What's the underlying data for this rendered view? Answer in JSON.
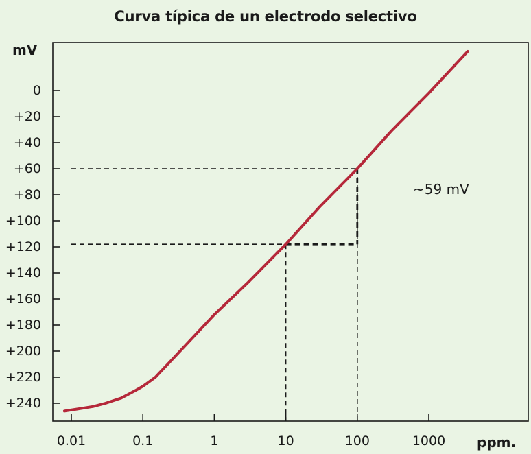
{
  "colors": {
    "background": "#eaf4e4",
    "curve": "#b5283a",
    "axis": "#1a1a1a"
  },
  "chart_data": {
    "type": "line",
    "title": "Curva típica de un electrodo selectivo",
    "ylabel": "mV",
    "xlabel": "ppm.",
    "x_scale": "log",
    "y_inverted": true,
    "grid": false,
    "xlim": [
      0.007,
      6000
    ],
    "ylim": [
      -40,
      260
    ],
    "x_ticks": [
      0.01,
      0.1,
      1,
      10,
      100,
      1000
    ],
    "x_tick_labels": [
      "0.01",
      "0.1",
      "1",
      "10",
      "100",
      "1000"
    ],
    "y_ticks": [
      0,
      20,
      40,
      60,
      80,
      100,
      120,
      140,
      160,
      180,
      200,
      220,
      240
    ],
    "y_tick_labels": [
      "0",
      "+20",
      "+40",
      "+60",
      "+80",
      "+100",
      "+120",
      "+140",
      "+160",
      "+180",
      "+200",
      "+220",
      "+240"
    ],
    "series": [
      {
        "x": [
          0.008,
          0.012,
          0.02,
          0.03,
          0.05,
          0.08,
          0.1,
          0.15,
          0.3,
          1,
          3,
          10,
          30,
          100,
          300,
          1000,
          3500
        ],
        "y": [
          246,
          244.5,
          242.5,
          240,
          236,
          230,
          227,
          220,
          202.5,
          172,
          147,
          118,
          89,
          60,
          31,
          2,
          -30
        ]
      }
    ],
    "reference_lines": [
      {
        "x": 10,
        "y": 118
      },
      {
        "x": 100,
        "y": 60
      }
    ],
    "annotations": [
      {
        "text": "~59 mV"
      }
    ]
  }
}
